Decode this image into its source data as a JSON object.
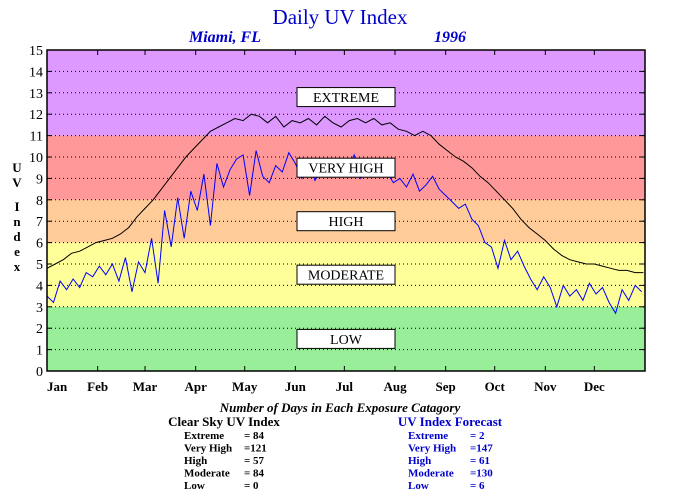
{
  "chart_data": {
    "type": "line",
    "title": "Daily UV Index",
    "subtitle_location": "Miami, FL",
    "subtitle_year": "1996",
    "ylabel": "UV Index",
    "ylim": [
      0,
      15
    ],
    "yticks": [
      "0",
      "1",
      "2",
      "3",
      "4",
      "5",
      "6",
      "7",
      "8",
      "9",
      "10",
      "11",
      "12",
      "13",
      "14",
      "15"
    ],
    "xlim": [
      0,
      366
    ],
    "months": [
      "Jan",
      "Feb",
      "Mar",
      "Apr",
      "May",
      "Jun",
      "Jul",
      "Aug",
      "Sep",
      "Oct",
      "Nov",
      "Dec"
    ],
    "month_start_days": [
      0,
      31,
      60,
      91,
      121,
      152,
      182,
      213,
      244,
      274,
      305,
      335
    ],
    "grid": "horizontal dotted",
    "bands": [
      {
        "label": "LOW",
        "from": 0,
        "to": 3,
        "color": "#99ee99"
      },
      {
        "label": "MODERATE",
        "from": 3,
        "to": 6,
        "color": "#ffff99"
      },
      {
        "label": "HIGH",
        "from": 6,
        "to": 8,
        "color": "#ffcc99"
      },
      {
        "label": "VERY HIGH",
        "from": 8,
        "to": 11,
        "color": "#ff9999"
      },
      {
        "label": "EXTREME",
        "from": 11,
        "to": 15,
        "color": "#dd99ff"
      }
    ],
    "series": [
      {
        "name": "Clear Sky UV Index",
        "color": "#000000",
        "x": [
          0,
          5,
          10,
          15,
          20,
          25,
          30,
          35,
          40,
          45,
          50,
          55,
          60,
          65,
          70,
          75,
          80,
          85,
          90,
          95,
          100,
          105,
          110,
          115,
          120,
          125,
          130,
          135,
          140,
          145,
          150,
          155,
          160,
          165,
          170,
          175,
          180,
          185,
          190,
          195,
          200,
          205,
          210,
          215,
          220,
          225,
          230,
          235,
          240,
          245,
          250,
          255,
          260,
          265,
          270,
          275,
          280,
          285,
          290,
          295,
          300,
          305,
          310,
          315,
          320,
          325,
          330,
          335,
          340,
          345,
          350,
          355,
          360,
          365
        ],
        "y": [
          4.8,
          5.0,
          5.2,
          5.5,
          5.6,
          5.8,
          6.0,
          6.1,
          6.2,
          6.4,
          6.7,
          7.2,
          7.6,
          8.0,
          8.5,
          9.0,
          9.5,
          10.0,
          10.4,
          10.8,
          11.2,
          11.4,
          11.6,
          11.8,
          11.7,
          12.0,
          11.9,
          11.6,
          11.9,
          11.4,
          11.7,
          11.6,
          11.8,
          11.5,
          11.9,
          11.6,
          11.4,
          11.7,
          11.8,
          11.6,
          11.8,
          11.5,
          11.6,
          11.3,
          11.2,
          11.0,
          11.2,
          11.0,
          10.6,
          10.3,
          10.0,
          9.8,
          9.5,
          9.1,
          8.8,
          8.4,
          8.0,
          7.6,
          7.1,
          6.7,
          6.4,
          6.1,
          5.7,
          5.4,
          5.2,
          5.1,
          5.0,
          5.0,
          4.9,
          4.8,
          4.7,
          4.7,
          4.6,
          4.6
        ]
      },
      {
        "name": "UV Index Forecast",
        "color": "#0000ff",
        "x": [
          0,
          4,
          8,
          12,
          16,
          20,
          24,
          28,
          32,
          36,
          40,
          44,
          48,
          52,
          56,
          60,
          64,
          68,
          72,
          76,
          80,
          84,
          88,
          92,
          96,
          100,
          104,
          108,
          112,
          116,
          120,
          124,
          128,
          132,
          136,
          140,
          144,
          148,
          152,
          156,
          160,
          164,
          168,
          172,
          176,
          180,
          184,
          188,
          192,
          196,
          200,
          204,
          208,
          212,
          216,
          220,
          224,
          228,
          232,
          236,
          240,
          244,
          248,
          252,
          256,
          260,
          264,
          268,
          272,
          276,
          280,
          284,
          288,
          292,
          296,
          300,
          304,
          308,
          312,
          316,
          320,
          324,
          328,
          332,
          336,
          340,
          344,
          348,
          352,
          356,
          360,
          364
        ],
        "y": [
          3.5,
          3.2,
          4.2,
          3.8,
          4.3,
          3.9,
          4.6,
          4.4,
          4.9,
          4.5,
          5.0,
          4.2,
          5.3,
          3.7,
          5.1,
          4.6,
          6.2,
          4.1,
          7.5,
          5.8,
          8.1,
          6.2,
          8.4,
          7.5,
          9.2,
          6.8,
          9.7,
          8.6,
          9.4,
          9.9,
          10.1,
          8.2,
          10.3,
          9.1,
          8.8,
          9.6,
          9.3,
          10.2,
          9.7,
          9.0,
          9.8,
          8.9,
          9.4,
          9.6,
          9.9,
          9.2,
          9.5,
          10.1,
          9.0,
          9.4,
          9.1,
          9.7,
          9.3,
          8.8,
          9.0,
          8.6,
          9.2,
          8.4,
          8.7,
          9.1,
          8.5,
          8.2,
          7.9,
          7.6,
          7.8,
          7.1,
          6.8,
          6.0,
          5.8,
          4.8,
          6.1,
          5.2,
          5.6,
          4.9,
          4.3,
          3.8,
          4.4,
          3.9,
          3.0,
          4.0,
          3.5,
          3.8,
          3.3,
          4.1,
          3.6,
          3.9,
          3.2,
          2.7,
          3.8,
          3.3,
          4.0,
          3.7
        ]
      }
    ],
    "summary": {
      "heading": "Number of Days in Each Exposure Catagory",
      "clear_sky": {
        "title": "Clear Sky UV Index",
        "rows": [
          {
            "label": "Extreme",
            "value": "= 84"
          },
          {
            "label": "Very High",
            "value": "=121"
          },
          {
            "label": "High",
            "value": "= 57"
          },
          {
            "label": "Moderate",
            "value": "= 84"
          },
          {
            "label": "Low",
            "value": "= 0"
          }
        ]
      },
      "forecast": {
        "title": "UV Index Forecast",
        "rows": [
          {
            "label": "Extreme",
            "value": "= 2"
          },
          {
            "label": "Very High",
            "value": "=147"
          },
          {
            "label": "High",
            "value": "= 61"
          },
          {
            "label": "Moderate",
            "value": "=130"
          },
          {
            "label": "Low",
            "value": "= 6"
          }
        ]
      }
    }
  }
}
